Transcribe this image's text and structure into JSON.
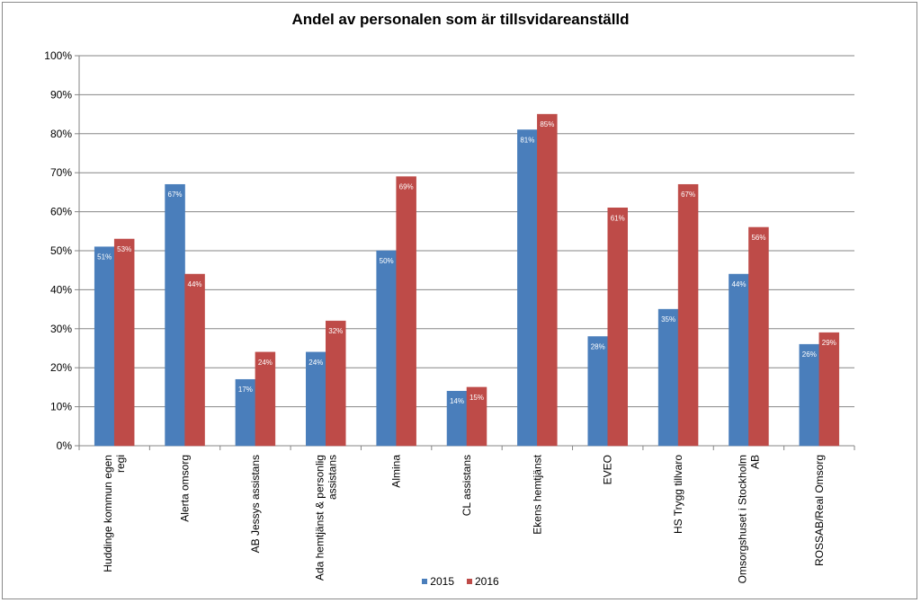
{
  "chart_data": {
    "type": "bar",
    "title": "Andel av personalen som är tillsvidareanställd",
    "xlabel": "",
    "ylabel": "",
    "ylim": [
      0,
      1
    ],
    "y_ticks": [
      "0%",
      "10%",
      "20%",
      "30%",
      "40%",
      "50%",
      "60%",
      "70%",
      "80%",
      "90%",
      "100%"
    ],
    "grid": true,
    "legend_position": "bottom",
    "categories": [
      "Huddinge kommun egen regi",
      "Alerta omsorg",
      "AB Jessys assistans",
      "Ada hemtjänst & personlig assistans",
      "Almina",
      "CL assistans",
      "Ekens hemtjänst",
      "EVEO",
      "HS Trygg tillvaro",
      "Omsorgshuset i Stockholm AB",
      "ROSSAB/Real Omsorg"
    ],
    "category_lines": [
      [
        "Huddinge kommun egen",
        "regi"
      ],
      [
        "Alerta omsorg"
      ],
      [
        "AB Jessys assistans"
      ],
      [
        "Ada hemtjänst & personlig",
        "assistans"
      ],
      [
        "Almina"
      ],
      [
        "CL assistans"
      ],
      [
        "Ekens hemtjänst"
      ],
      [
        "EVEO"
      ],
      [
        "HS Trygg tillvaro"
      ],
      [
        "Omsorgshuset i Stockholm",
        "AB"
      ],
      [
        "ROSSAB/Real Omsorg"
      ]
    ],
    "series": [
      {
        "name": "2015",
        "color": "#4a7ebb",
        "values": [
          0.51,
          0.67,
          0.17,
          0.24,
          0.5,
          0.14,
          0.81,
          0.28,
          0.35,
          0.44,
          0.26
        ],
        "labels": [
          "51%",
          "67%",
          "17%",
          "24%",
          "50%",
          "14%",
          "81%",
          "28%",
          "35%",
          "44%",
          "26%"
        ]
      },
      {
        "name": "2016",
        "color": "#be4b48",
        "values": [
          0.53,
          0.44,
          0.24,
          0.32,
          0.69,
          0.15,
          0.85,
          0.61,
          0.67,
          0.56,
          0.29
        ],
        "labels": [
          "53%",
          "44%",
          "24%",
          "32%",
          "69%",
          "15%",
          "85%",
          "61%",
          "67%",
          "56%",
          "29%"
        ]
      }
    ]
  }
}
